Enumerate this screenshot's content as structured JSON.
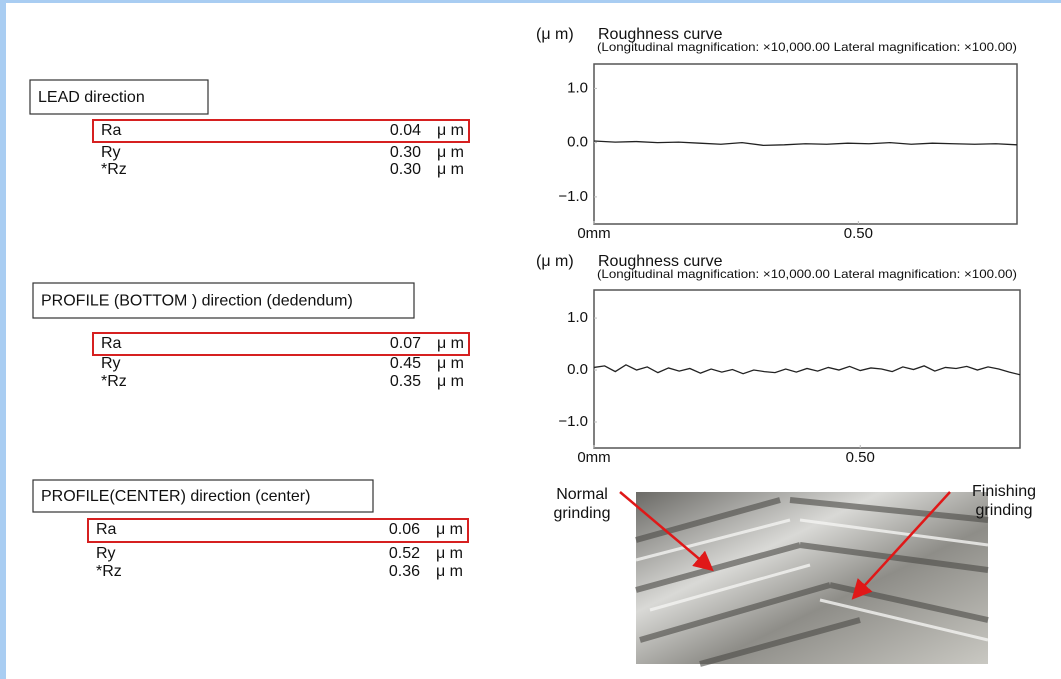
{
  "sections": [
    {
      "heading": "LEAD direction",
      "rows": [
        {
          "name": "Ra",
          "value": "0.04",
          "unit": "μ m"
        },
        {
          "name": "Ry",
          "value": "0.30",
          "unit": "μ m"
        },
        {
          "name": "*Rz",
          "value": "0.30",
          "unit": "μ m"
        }
      ]
    },
    {
      "heading": "PROFILE (BOTTOM ) direction (dedendum)",
      "rows": [
        {
          "name": "Ra",
          "value": "0.07",
          "unit": "μ m"
        },
        {
          "name": "Ry",
          "value": "0.45",
          "unit": "μ m"
        },
        {
          "name": "*Rz",
          "value": "0.35",
          "unit": "μ m"
        }
      ]
    },
    {
      "heading": "PROFILE(CENTER) direction (center)",
      "rows": [
        {
          "name": "Ra",
          "value": "0.06",
          "unit": "μ m"
        },
        {
          "name": "Ry",
          "value": "0.52",
          "unit": "μ m"
        },
        {
          "name": "*Rz",
          "value": "0.36",
          "unit": "μ m"
        }
      ]
    }
  ],
  "charts": [
    {
      "type": "line",
      "unit_label": "(μ m)",
      "title": "Roughness curve",
      "subtitle": "(Longitudinal magnification: ×10,000.00 Lateral magnification: ×100.00)",
      "xlim": [
        0,
        0.8
      ],
      "ylim": [
        -1.5,
        1.45
      ],
      "xticks": [
        {
          "value": 0,
          "label": "0mm"
        },
        {
          "value": 0.5,
          "label": "0.50"
        }
      ],
      "yticks": [
        {
          "value": 1,
          "label": "1.0"
        },
        {
          "value": 0,
          "label": "0.0"
        },
        {
          "value": -1,
          "label": "−1.0"
        }
      ],
      "x": [
        0,
        0.04,
        0.08,
        0.12,
        0.16,
        0.2,
        0.24,
        0.28,
        0.32,
        0.36,
        0.4,
        0.44,
        0.48,
        0.52,
        0.56,
        0.6,
        0.64,
        0.68,
        0.72,
        0.76,
        0.8
      ],
      "values": [
        0.03,
        0.01,
        0.02,
        0.0,
        0.01,
        -0.01,
        -0.03,
        0.0,
        -0.05,
        -0.04,
        -0.02,
        -0.03,
        -0.01,
        -0.02,
        0.0,
        -0.03,
        -0.01,
        -0.02,
        -0.03,
        -0.02,
        -0.04
      ]
    },
    {
      "type": "line",
      "unit_label": "(μ m)",
      "title": "Roughness curve",
      "subtitle": "(Longitudinal magnification: ×10,000.00 Lateral magnification: ×100.00)",
      "xlim": [
        0,
        0.8
      ],
      "ylim": [
        -1.5,
        1.54
      ],
      "xticks": [
        {
          "value": 0,
          "label": "0mm"
        },
        {
          "value": 0.5,
          "label": "0.50"
        }
      ],
      "yticks": [
        {
          "value": 1,
          "label": "1.0"
        },
        {
          "value": 0,
          "label": "0.0"
        },
        {
          "value": -1,
          "label": "−1.0"
        }
      ],
      "x": [
        0,
        0.02,
        0.04,
        0.06,
        0.08,
        0.1,
        0.12,
        0.14,
        0.16,
        0.18,
        0.2,
        0.22,
        0.24,
        0.26,
        0.28,
        0.3,
        0.32,
        0.34,
        0.36,
        0.38,
        0.4,
        0.42,
        0.44,
        0.46,
        0.48,
        0.5,
        0.52,
        0.54,
        0.56,
        0.58,
        0.6,
        0.62,
        0.64,
        0.66,
        0.68,
        0.7,
        0.72,
        0.74,
        0.76,
        0.78,
        0.8
      ],
      "values": [
        0.05,
        0.08,
        -0.03,
        0.1,
        0.0,
        0.06,
        -0.05,
        0.04,
        -0.02,
        0.03,
        -0.06,
        0.02,
        -0.04,
        0.01,
        -0.07,
        0.0,
        -0.03,
        -0.05,
        0.02,
        -0.04,
        0.03,
        -0.02,
        0.05,
        0.0,
        0.07,
        -0.01,
        0.04,
        0.02,
        -0.03,
        0.06,
        0.01,
        0.08,
        -0.02,
        0.05,
        0.03,
        0.07,
        0.0,
        0.06,
        0.02,
        -0.04,
        -0.09
      ]
    }
  ],
  "photo": {
    "annotations": [
      [
        "Normal",
        "grinding"
      ],
      [
        "Finishing",
        "grinding"
      ]
    ]
  }
}
